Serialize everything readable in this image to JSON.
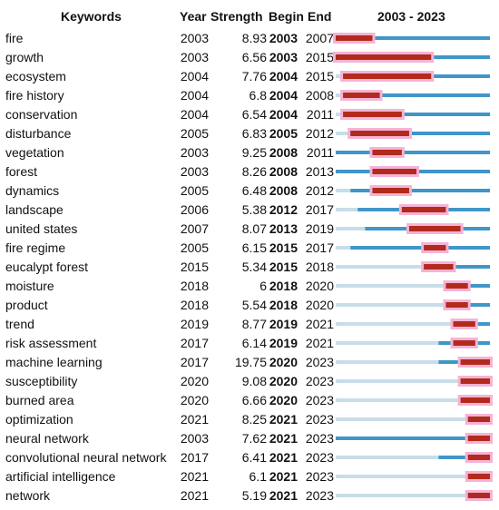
{
  "headers": {
    "keywords": "Keywords",
    "year": "Year",
    "strength": "Strength",
    "begin": "Begin",
    "end": "End",
    "range": "2003 - 2023"
  },
  "chart_data": {
    "type": "table",
    "title": "",
    "year_min": 2003,
    "year_max": 2023,
    "colors": {
      "burst": "#b22a1c",
      "active": "#3f96c8",
      "inactive": "#c8dde9",
      "halo": "#f5b3d5"
    },
    "rows": [
      {
        "keyword": "fire",
        "year": "2003",
        "strength": "8.93",
        "begin": "2003",
        "end": "2007"
      },
      {
        "keyword": "growth",
        "year": "2003",
        "strength": "6.56",
        "begin": "2003",
        "end": "2015"
      },
      {
        "keyword": "ecosystem",
        "year": "2004",
        "strength": "7.76",
        "begin": "2004",
        "end": "2015"
      },
      {
        "keyword": "fire history",
        "year": "2004",
        "strength": "6.8",
        "begin": "2004",
        "end": "2008"
      },
      {
        "keyword": "conservation",
        "year": "2004",
        "strength": "6.54",
        "begin": "2004",
        "end": "2011"
      },
      {
        "keyword": "disturbance",
        "year": "2005",
        "strength": "6.83",
        "begin": "2005",
        "end": "2012"
      },
      {
        "keyword": "vegetation",
        "year": "2003",
        "strength": "9.25",
        "begin": "2008",
        "end": "2011"
      },
      {
        "keyword": "forest",
        "year": "2003",
        "strength": "8.26",
        "begin": "2008",
        "end": "2013"
      },
      {
        "keyword": "dynamics",
        "year": "2005",
        "strength": "6.48",
        "begin": "2008",
        "end": "2012"
      },
      {
        "keyword": "landscape",
        "year": "2006",
        "strength": "5.38",
        "begin": "2012",
        "end": "2017"
      },
      {
        "keyword": "united states",
        "year": "2007",
        "strength": "8.07",
        "begin": "2013",
        "end": "2019"
      },
      {
        "keyword": "fire regime",
        "year": "2005",
        "strength": "6.15",
        "begin": "2015",
        "end": "2017"
      },
      {
        "keyword": "eucalypt forest",
        "year": "2015",
        "strength": "5.34",
        "begin": "2015",
        "end": "2018"
      },
      {
        "keyword": "moisture",
        "year": "2018",
        "strength": "6",
        "begin": "2018",
        "end": "2020"
      },
      {
        "keyword": "product",
        "year": "2018",
        "strength": "5.54",
        "begin": "2018",
        "end": "2020"
      },
      {
        "keyword": "trend",
        "year": "2019",
        "strength": "8.77",
        "begin": "2019",
        "end": "2021"
      },
      {
        "keyword": "risk assessment",
        "year": "2017",
        "strength": "6.14",
        "begin": "2019",
        "end": "2021"
      },
      {
        "keyword": "machine learning",
        "year": "2017",
        "strength": "19.75",
        "begin": "2020",
        "end": "2023"
      },
      {
        "keyword": "susceptibility",
        "year": "2020",
        "strength": "9.08",
        "begin": "2020",
        "end": "2023"
      },
      {
        "keyword": "burned area",
        "year": "2020",
        "strength": "6.66",
        "begin": "2020",
        "end": "2023"
      },
      {
        "keyword": "optimization",
        "year": "2021",
        "strength": "8.25",
        "begin": "2021",
        "end": "2023"
      },
      {
        "keyword": "neural network",
        "year": "2003",
        "strength": "7.62",
        "begin": "2021",
        "end": "2023"
      },
      {
        "keyword": "convolutional neural network",
        "year": "2017",
        "strength": "6.41",
        "begin": "2021",
        "end": "2023"
      },
      {
        "keyword": "artificial intelligence",
        "year": "2021",
        "strength": "6.1",
        "begin": "2021",
        "end": "2023"
      },
      {
        "keyword": "network",
        "year": "2021",
        "strength": "5.19",
        "begin": "2021",
        "end": "2023"
      }
    ]
  }
}
